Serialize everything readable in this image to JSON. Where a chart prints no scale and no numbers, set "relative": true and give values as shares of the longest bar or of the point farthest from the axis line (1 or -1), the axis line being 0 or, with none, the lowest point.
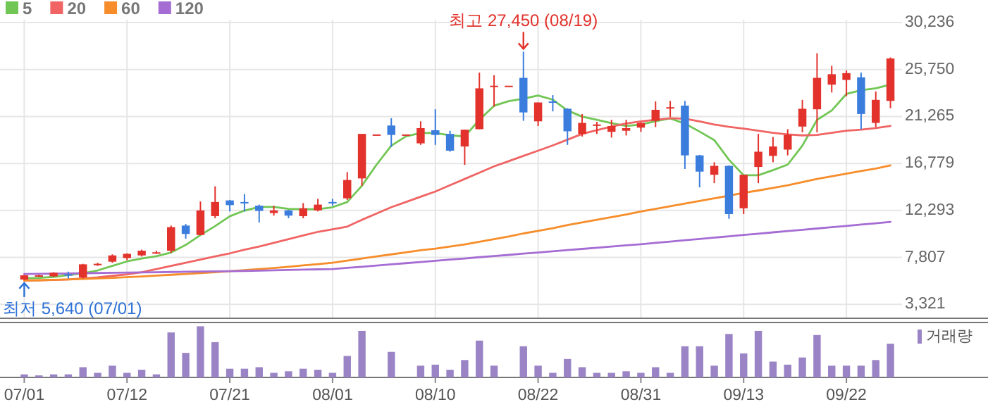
{
  "chart_data": [
    {
      "type": "candlestick",
      "categories": [
        null,
        null,
        null,
        null,
        null,
        null,
        null,
        null,
        null,
        null,
        null,
        null,
        null,
        null,
        null,
        null,
        null,
        null,
        null,
        null,
        null,
        null,
        null,
        null,
        null,
        null,
        null,
        null,
        null,
        null,
        null,
        null,
        null,
        null,
        null,
        null,
        null,
        null,
        null,
        null,
        null,
        null,
        null,
        null,
        null,
        null,
        null,
        null,
        null,
        null,
        null,
        null,
        null,
        null,
        null,
        null,
        null,
        null,
        null,
        null
      ],
      "ohlc": [
        [
          5700,
          6150,
          5640,
          6100
        ],
        [
          6000,
          6150,
          5950,
          6100
        ],
        [
          6000,
          6400,
          5950,
          6350
        ],
        [
          6200,
          6450,
          5800,
          6100
        ],
        [
          5900,
          7200,
          5800,
          7150
        ],
        [
          7100,
          7300,
          7000,
          7200
        ],
        [
          7400,
          8100,
          7300,
          8000
        ],
        [
          7750,
          8200,
          7550,
          8150
        ],
        [
          8000,
          8550,
          7900,
          8450
        ],
        [
          8200,
          8450,
          8150,
          8300
        ],
        [
          8450,
          10850,
          8250,
          10700
        ],
        [
          10850,
          11000,
          9600,
          10050
        ],
        [
          9950,
          13150,
          9950,
          12300
        ],
        [
          11750,
          14600,
          11550,
          13100
        ],
        [
          13250,
          13300,
          12200,
          12800
        ],
        [
          13100,
          13850,
          12200,
          13050
        ],
        [
          12750,
          12850,
          11150,
          12250
        ],
        [
          12050,
          12750,
          11800,
          12300
        ],
        [
          12300,
          12350,
          11550,
          11800
        ],
        [
          11750,
          13000,
          11550,
          12500
        ],
        [
          12300,
          13400,
          12200,
          12850
        ],
        [
          13100,
          13400,
          12750,
          13050
        ],
        [
          13450,
          15950,
          13300,
          15200
        ],
        [
          15350,
          19600,
          14650,
          19600
        ],
        [
          19550,
          19550,
          19550,
          19550
        ],
        [
          20400,
          21100,
          18350,
          19500
        ],
        [
          19550,
          19550,
          19550,
          19550
        ],
        [
          18700,
          20800,
          18550,
          20150
        ],
        [
          19950,
          21950,
          18550,
          19500
        ],
        [
          19600,
          19900,
          17900,
          18000
        ],
        [
          18400,
          20000,
          16650,
          20000
        ],
        [
          20050,
          25450,
          20050,
          23950
        ],
        [
          24150,
          25200,
          22200,
          24200
        ],
        [
          24200,
          24200,
          24200,
          24200
        ],
        [
          24950,
          27450,
          20850,
          21650
        ],
        [
          20800,
          22600,
          20350,
          22600
        ],
        [
          22700,
          23300,
          21750,
          22600
        ],
        [
          22000,
          22050,
          18550,
          19850
        ],
        [
          19600,
          21500,
          19350,
          20650
        ],
        [
          20400,
          20750,
          19600,
          20500
        ],
        [
          19800,
          20950,
          19250,
          20350
        ],
        [
          19900,
          20950,
          19450,
          20150
        ],
        [
          20200,
          20700,
          19800,
          20650
        ],
        [
          20850,
          22700,
          20250,
          21900
        ],
        [
          22100,
          22750,
          21200,
          22150
        ],
        [
          22300,
          22750,
          16250,
          17550
        ],
        [
          17550,
          17600,
          14500,
          16000
        ],
        [
          15700,
          16900,
          14900,
          16550
        ],
        [
          16550,
          16600,
          11500,
          11950
        ],
        [
          12500,
          15700,
          11950,
          15700
        ],
        [
          16450,
          19600,
          14900,
          17900
        ],
        [
          17500,
          19300,
          16900,
          18400
        ],
        [
          18100,
          20050,
          17550,
          19500
        ],
        [
          20300,
          22850,
          19750,
          22000
        ],
        [
          21950,
          27300,
          19750,
          24950
        ],
        [
          24300,
          26100,
          23550,
          25300
        ],
        [
          24750,
          25650,
          23200,
          25400
        ],
        [
          25000,
          25450,
          20050,
          21500
        ],
        [
          20650,
          23650,
          20250,
          22850
        ],
        [
          22750,
          26900,
          22050,
          26800
        ]
      ],
      "colors": [
        "#e2322b",
        "#e2322b",
        "#e2322b",
        "#3b7ddd",
        "#e2322b",
        "#e2322b",
        "#e2322b",
        "#e2322b",
        "#e2322b",
        "#e2322b",
        "#e2322b",
        "#3b7ddd",
        "#e2322b",
        "#e2322b",
        "#3b7ddd",
        "#3b7ddd",
        "#3b7ddd",
        "#e2322b",
        "#3b7ddd",
        "#e2322b",
        "#e2322b",
        "#3b7ddd",
        "#e2322b",
        "#e2322b",
        "#e2322b",
        "#3b7ddd",
        "#e2322b",
        "#e2322b",
        "#3b7ddd",
        "#3b7ddd",
        "#e2322b",
        "#e2322b",
        "#e2322b",
        "#e2322b",
        "#3b7ddd",
        "#e2322b",
        "#3b7ddd",
        "#3b7ddd",
        "#e2322b",
        "#e2322b",
        "#e2322b",
        "#e2322b",
        "#e2322b",
        "#e2322b",
        "#e2322b",
        "#3b7ddd",
        "#3b7ddd",
        "#e2322b",
        "#3b7ddd",
        "#e2322b",
        "#e2322b",
        "#e2322b",
        "#e2322b",
        "#e2322b",
        "#e2322b",
        "#e2322b",
        "#e2322b",
        "#3b7ddd",
        "#e2322b",
        "#e2322b"
      ],
      "series": [
        {
          "type": "line",
          "name": "5",
          "color": "#72c655",
          "values": [
            5815,
            5850,
            5950,
            6125,
            6300,
            6570,
            7000,
            7430,
            7700,
            7920,
            8280,
            9000,
            9940,
            10800,
            11740,
            12280,
            12630,
            12630,
            12450,
            12410,
            12410,
            12600,
            13100,
            14650,
            16670,
            18480,
            19370,
            19690,
            19690,
            19460,
            19370,
            20940,
            22290,
            22730,
            22960,
            23270,
            22870,
            21840,
            21250,
            20940,
            20630,
            20360,
            20500,
            20810,
            21080,
            20580,
            19820,
            19010,
            17130,
            15650,
            15650,
            16140,
            16670,
            18480,
            20940,
            21840,
            23410,
            23770,
            23950,
            24310
          ]
        },
        {
          "type": "line",
          "name": "20",
          "color": "#f06464",
          "values": [
            5600,
            5620,
            5650,
            5700,
            5800,
            5900,
            6050,
            6200,
            6400,
            6700,
            7000,
            7300,
            7600,
            7900,
            8200,
            8550,
            8850,
            9200,
            9550,
            9900,
            10250,
            10500,
            10750,
            11400,
            12000,
            12600,
            13100,
            13600,
            14100,
            14700,
            15300,
            15900,
            16500,
            17000,
            17500,
            18000,
            18500,
            19050,
            19600,
            19950,
            20300,
            20600,
            20800,
            20940,
            21100,
            21050,
            20800,
            20500,
            20270,
            20100,
            19900,
            19700,
            19550,
            19460,
            19500,
            19700,
            19900,
            20000,
            20150,
            20360
          ]
        },
        {
          "type": "line",
          "name": "60",
          "color": "#f68d2a",
          "values": [
            5600,
            5630,
            5670,
            5710,
            5750,
            5800,
            5860,
            5920,
            5990,
            6070,
            6150,
            6230,
            6310,
            6400,
            6500,
            6600,
            6700,
            6800,
            6920,
            7050,
            7170,
            7300,
            7500,
            7700,
            7900,
            8100,
            8300,
            8500,
            8650,
            8850,
            9050,
            9300,
            9550,
            9800,
            10100,
            10350,
            10600,
            10900,
            11150,
            11400,
            11650,
            11900,
            12200,
            12450,
            12700,
            12950,
            13200,
            13450,
            13700,
            13970,
            14200,
            14450,
            14700,
            15000,
            15300,
            15550,
            15800,
            16050,
            16300,
            16590
          ]
        },
        {
          "type": "line",
          "name": "120",
          "color": "#a56dd3",
          "values": [
            6220,
            6240,
            6260,
            6280,
            6300,
            6320,
            6340,
            6360,
            6380,
            6400,
            6420,
            6440,
            6460,
            6480,
            6500,
            6520,
            6550,
            6580,
            6610,
            6640,
            6670,
            6700,
            6810,
            6920,
            7030,
            7150,
            7260,
            7370,
            7490,
            7600,
            7710,
            7830,
            7940,
            8050,
            8170,
            8280,
            8390,
            8510,
            8620,
            8730,
            8850,
            8960,
            9070,
            9200,
            9320,
            9450,
            9570,
            9700,
            9820,
            9950,
            10070,
            10200,
            10320,
            10450,
            10570,
            10700,
            10820,
            10950,
            11070,
            11200
          ]
        }
      ],
      "ylim": [
        2000,
        30500
      ],
      "yticks": [
        {
          "value": 3321,
          "label": "3,321"
        },
        {
          "value": 7807,
          "label": "7,807"
        },
        {
          "value": 12293,
          "label": "12,293"
        },
        {
          "value": 16779,
          "label": "16,779"
        },
        {
          "value": 21265,
          "label": "21,265"
        },
        {
          "value": 25750,
          "label": "25,750"
        },
        {
          "value": 30236,
          "label": "30,236"
        }
      ],
      "annotations": [
        "최고 27,450 (08/19)",
        "최저 5,640 (07/01)"
      ],
      "grid": true,
      "legend": "top left",
      "tick_labels": "y"
    },
    {
      "type": "bar",
      "relative": true,
      "categories": [
        "07/01",
        null,
        null,
        null,
        null,
        null,
        null,
        "07/12",
        null,
        null,
        null,
        null,
        null,
        null,
        "07/21",
        null,
        null,
        null,
        null,
        null,
        null,
        "08/01",
        null,
        null,
        null,
        null,
        null,
        null,
        "08/10",
        null,
        null,
        null,
        null,
        null,
        null,
        "08/22",
        null,
        null,
        null,
        null,
        null,
        null,
        "08/31",
        null,
        null,
        null,
        null,
        null,
        null,
        "09/13",
        null,
        null,
        null,
        null,
        null,
        null,
        "09/22",
        null,
        null,
        null
      ],
      "series": [
        {
          "name": "거래량",
          "color": "#9b84c6",
          "values": [
            0.06,
            0.04,
            0.06,
            0.06,
            0.2,
            0.09,
            0.23,
            0.09,
            0.15,
            0.06,
            0.88,
            0.48,
            1,
            0.69,
            0.17,
            0.17,
            0.2,
            0.09,
            0.12,
            0.17,
            0.15,
            0.09,
            0.42,
            0.91,
            0,
            0.5,
            0,
            0.23,
            0.25,
            0.15,
            0.34,
            0.72,
            0.23,
            0,
            0.61,
            0.23,
            0.09,
            0.36,
            0.2,
            0.09,
            0.09,
            0.12,
            0.09,
            0.2,
            0.09,
            0.61,
            0.61,
            0.23,
            0.85,
            0.47,
            0.91,
            0.31,
            0.25,
            0.39,
            0.83,
            0.23,
            0.23,
            0.23,
            0.34,
            0.66
          ]
        }
      ],
      "legend": "top right",
      "tick_labels": "x"
    }
  ]
}
